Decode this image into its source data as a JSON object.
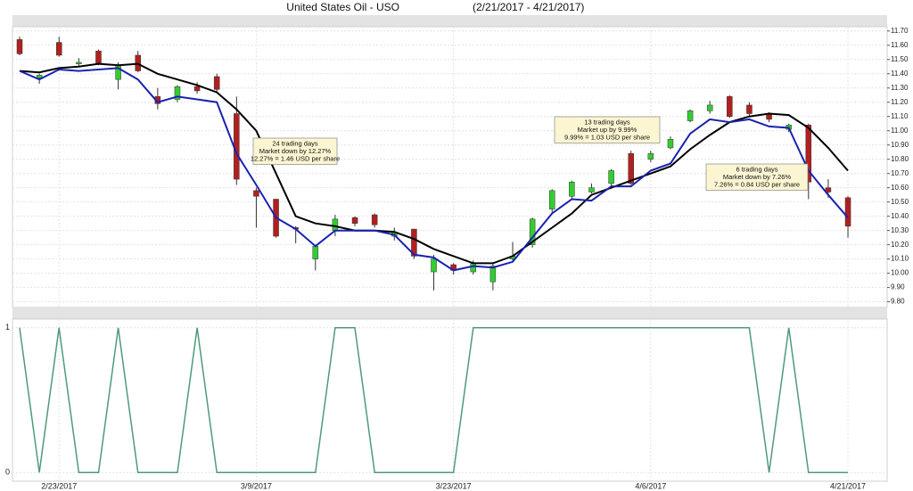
{
  "chart_data": [
    {
      "type": "candlestick",
      "title": "United States Oil -  USO",
      "subtitle": "(2/21/2017 - 4/21/2017)",
      "categories": [
        null,
        null,
        "2/23/2017",
        null,
        null,
        null,
        null,
        null,
        null,
        null,
        null,
        null,
        "3/9/2017",
        null,
        null,
        null,
        null,
        null,
        null,
        null,
        null,
        null,
        "3/23/2017",
        null,
        null,
        null,
        null,
        null,
        null,
        null,
        null,
        null,
        "4/6/2017",
        null,
        null,
        null,
        null,
        null,
        null,
        null,
        null,
        null,
        "4/21/2017"
      ],
      "candles": {
        "open": [
          11.64,
          11.37,
          11.62,
          11.47,
          11.56,
          11.36,
          11.53,
          11.24,
          11.22,
          11.31,
          11.38,
          11.12,
          10.58,
          10.52,
          10.32,
          10.1,
          10.3,
          10.39,
          10.41,
          10.26,
          10.31,
          10.01,
          10.06,
          10.01,
          9.94,
          10.1,
          10.2,
          10.45,
          10.54,
          10.57,
          10.63,
          10.84,
          10.8,
          10.88,
          11.07,
          11.14,
          11.24,
          11.18,
          11.12,
          11.01,
          11.04,
          10.6,
          10.53
        ],
        "high": [
          11.66,
          11.4,
          11.66,
          11.51,
          11.57,
          11.48,
          11.56,
          11.3,
          11.32,
          11.34,
          11.4,
          11.24,
          10.6,
          10.52,
          10.33,
          10.2,
          10.41,
          10.4,
          10.42,
          10.32,
          10.31,
          10.13,
          10.07,
          10.09,
          10.07,
          10.22,
          10.39,
          10.59,
          10.65,
          10.63,
          10.73,
          10.86,
          10.86,
          10.96,
          11.15,
          11.21,
          11.25,
          11.2,
          11.13,
          11.05,
          11.05,
          10.66,
          10.54
        ],
        "low": [
          11.53,
          11.33,
          11.52,
          11.45,
          11.46,
          11.29,
          11.41,
          11.15,
          11.2,
          11.26,
          11.27,
          10.62,
          10.32,
          10.25,
          10.21,
          10.02,
          10.26,
          10.33,
          10.32,
          10.23,
          10.1,
          9.88,
          9.99,
          9.99,
          9.88,
          10.09,
          10.18,
          10.42,
          10.52,
          10.56,
          10.6,
          10.62,
          10.78,
          10.87,
          11.06,
          11.12,
          11.09,
          11.1,
          11.06,
          10.99,
          10.52,
          10.53,
          10.25
        ],
        "close": [
          11.54,
          11.39,
          11.53,
          11.48,
          11.47,
          11.46,
          11.42,
          11.19,
          11.31,
          11.28,
          11.29,
          10.66,
          10.54,
          10.26,
          10.31,
          10.19,
          10.38,
          10.35,
          10.34,
          10.29,
          10.12,
          10.1,
          10.02,
          10.07,
          10.05,
          10.12,
          10.38,
          10.58,
          10.64,
          10.6,
          10.72,
          10.63,
          10.84,
          10.94,
          11.14,
          11.18,
          11.1,
          11.12,
          11.08,
          11.04,
          10.64,
          10.57,
          10.33
        ],
        "up_color": "#33cc33",
        "down_color": "#b02020"
      },
      "series": [
        {
          "color": "#000000",
          "values": [
            11.42,
            11.41,
            11.44,
            11.45,
            11.47,
            11.46,
            11.47,
            11.4,
            11.36,
            11.32,
            11.27,
            11.15,
            11.0,
            10.7,
            10.4,
            10.35,
            10.33,
            10.3,
            10.3,
            10.29,
            10.24,
            10.17,
            10.12,
            10.07,
            10.07,
            10.12,
            10.22,
            10.32,
            10.42,
            10.55,
            10.6,
            10.65,
            10.7,
            10.75,
            10.87,
            10.97,
            11.06,
            11.1,
            11.12,
            11.11,
            11.02,
            10.88,
            10.72
          ]
        },
        {
          "color": "#1a22b0",
          "values": [
            11.42,
            11.36,
            11.43,
            11.42,
            11.43,
            11.44,
            11.36,
            11.2,
            11.24,
            11.22,
            11.2,
            10.84,
            10.62,
            10.39,
            10.31,
            10.19,
            10.3,
            10.3,
            10.3,
            10.27,
            10.13,
            10.11,
            10.02,
            10.05,
            10.04,
            10.08,
            10.25,
            10.42,
            10.52,
            10.51,
            10.61,
            10.61,
            10.72,
            10.77,
            10.98,
            11.08,
            11.06,
            11.08,
            11.03,
            11.02,
            10.72,
            10.55,
            10.39
          ]
        }
      ],
      "ylim": [
        9.76,
        11.73
      ],
      "yticks": [
        {
          "value": 9.8,
          "label": "9.80"
        },
        {
          "value": 9.9,
          "label": "9.90"
        },
        {
          "value": 10.0,
          "label": "10.00"
        },
        {
          "value": 10.1,
          "label": "10.10"
        },
        {
          "value": 10.2,
          "label": "10.20"
        },
        {
          "value": 10.3,
          "label": "10.30"
        },
        {
          "value": 10.4,
          "label": "10.40"
        },
        {
          "value": 10.5,
          "label": "10.50"
        },
        {
          "value": 10.6,
          "label": "10.60"
        },
        {
          "value": 10.7,
          "label": "10.70"
        },
        {
          "value": 10.8,
          "label": "10.80"
        },
        {
          "value": 10.9,
          "label": "10.90"
        },
        {
          "value": 11.0,
          "label": "11.00"
        },
        {
          "value": 11.1,
          "label": "11.10"
        },
        {
          "value": 11.2,
          "label": "11.20"
        },
        {
          "value": 11.3,
          "label": "11.30"
        },
        {
          "value": 11.4,
          "label": "11.40"
        },
        {
          "value": 11.5,
          "label": "11.50"
        },
        {
          "value": 11.6,
          "label": "11.60"
        },
        {
          "value": 11.7,
          "label": "11.70"
        }
      ],
      "grid": true,
      "annotations": [
        {
          "lines": [
            "24 trading days",
            "Market down by 12.27%",
            "12.27% = 1.46 USD per share"
          ]
        },
        {
          "lines": [
            "13 trading days",
            "Market up by 9.99%",
            "9.99% = 1.03 USD per share"
          ]
        },
        {
          "lines": [
            "6 trading days",
            "Market down by 7.26%",
            "7.26% = 0.84 USD per share"
          ]
        }
      ]
    },
    {
      "type": "line",
      "series": [
        {
          "color": "#4f9a78",
          "values": [
            1,
            0,
            1,
            0,
            0,
            1,
            0,
            0,
            0,
            1,
            0,
            0,
            0,
            0,
            0,
            0,
            1,
            1,
            0,
            0,
            0,
            0,
            0,
            1,
            1,
            1,
            1,
            1,
            1,
            1,
            1,
            1,
            1,
            1,
            1,
            1,
            1,
            1,
            0,
            1,
            0,
            0,
            0
          ]
        }
      ],
      "ylim": [
        -0.06,
        1.06
      ],
      "yticks": [
        0,
        1
      ],
      "grid": true
    }
  ]
}
